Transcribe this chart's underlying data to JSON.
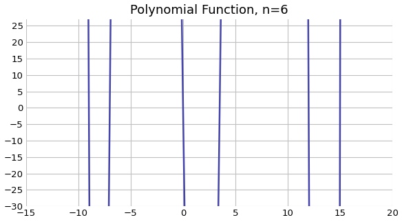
{
  "title": "Polynomial Function, n=6",
  "xlim": [
    -15,
    20
  ],
  "ylim": [
    -30,
    27
  ],
  "xticks": [
    -15,
    -10,
    -5,
    0,
    5,
    10,
    15,
    20
  ],
  "yticks": [
    -30,
    -25,
    -20,
    -15,
    -10,
    -5,
    0,
    5,
    10,
    15,
    20,
    25
  ],
  "line_color": "#4444AA",
  "line_width": 1.8,
  "roots": [
    -9.0,
    -7.0,
    0.0,
    3.5,
    12.0,
    15.0
  ],
  "scale": 0.0055,
  "background_color": "#ffffff",
  "grid_color": "#c0c0c0",
  "title_fontsize": 13,
  "tick_fontsize": 9.5
}
